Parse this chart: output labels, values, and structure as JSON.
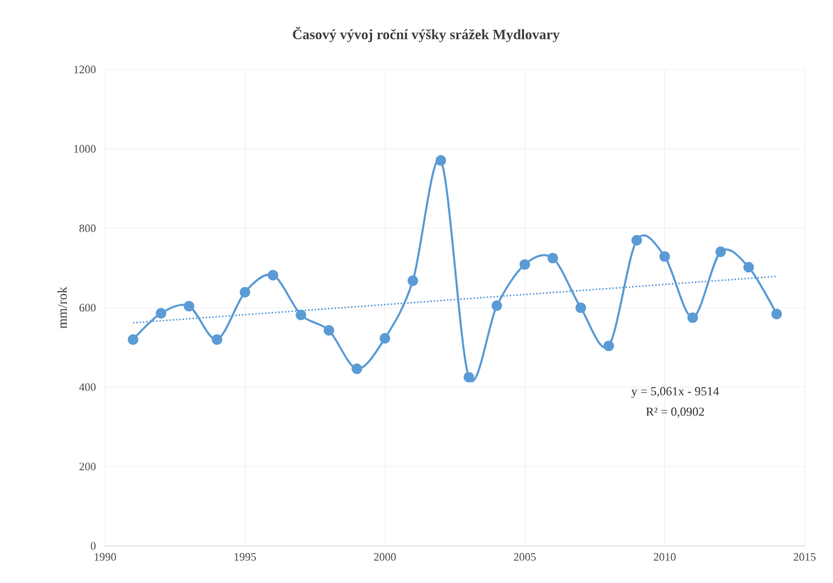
{
  "chart_data": {
    "type": "line",
    "title": "Časový vývoj  roční výšky srážek  Mydlovary",
    "ylabel": "mm/rok",
    "x": [
      1991,
      1992,
      1993,
      1994,
      1995,
      1996,
      1997,
      1998,
      1999,
      2000,
      2001,
      2002,
      2003,
      2004,
      2005,
      2006,
      2007,
      2008,
      2009,
      2010,
      2011,
      2012,
      2013,
      2014
    ],
    "series": [
      {
        "color": "#5b9bd5",
        "marker": "circle",
        "line_style": "solid",
        "values": [
          520,
          586,
          604,
          520,
          639,
          682,
          582,
          543,
          446,
          523,
          668,
          971,
          425,
          605,
          709,
          725,
          600,
          504,
          770,
          729,
          575,
          741,
          702,
          584
        ]
      },
      {
        "type": "line",
        "color": "#5b9bd5",
        "marker": "none",
        "line_style": "dotted",
        "x": [
          1991,
          2014
        ],
        "values": [
          562,
          679
        ]
      }
    ],
    "xlim": [
      1990,
      2015
    ],
    "xticks": [
      1990,
      1995,
      2000,
      2005,
      2010,
      2015
    ],
    "ylim": [
      0,
      1200
    ],
    "yticks": [
      0,
      200,
      400,
      600,
      800,
      1000,
      1200
    ],
    "grid": true,
    "annotations": [
      "y = 5,061x  - 9514",
      "R² = 0,0902"
    ]
  }
}
